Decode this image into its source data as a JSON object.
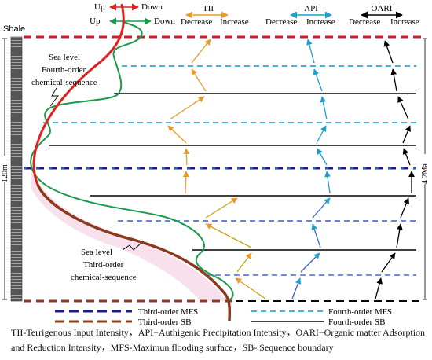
{
  "header": {
    "red_up": "Up",
    "red_down": "Down",
    "green_up": "Up",
    "green_down": "Down",
    "tii": "TII",
    "api": "API",
    "oari": "OARI",
    "tii_dec": "Decrease",
    "tii_inc": "Increase",
    "api_dec": "Decrease",
    "api_inc": "Increase",
    "oari_dec": "Decrease",
    "oari_inc": "Increase"
  },
  "left": {
    "shale": "Shale",
    "thickness": "120m"
  },
  "right": {
    "age": "4.2Ma"
  },
  "annotations": {
    "fourth_1": "Sea level",
    "fourth_2": "Fourth-order",
    "fourth_3": "chemical-sequence",
    "third_1": "Sea level",
    "third_2": "Third-order",
    "third_3": "chemical-sequence"
  },
  "legend": {
    "third_mfs": "Third-order MFS",
    "third_sb": "Third-order SB",
    "fourth_mfs": "Fourth-order MFS",
    "fourth_sb": "Fourth-order SB"
  },
  "caption": {
    "line1": "TII-Terrigenous Input Intensity，API−Authigenic Precipitation Intensity，OARI−Organic matter Adsorption",
    "line2": "and Reduction Intensity，MFS-Maximun flooding surface，SB- Sequence boundary"
  },
  "colors": {
    "third_sb": "#8b3a1c",
    "third_mfs": "#1b1b8f",
    "fourth_mfs": "#2aa9d6",
    "fourth_sb": "#000000",
    "sea_red": "#e02020",
    "sea_green": "#1a9a4a",
    "tii_arrow": "#e89a2a",
    "api_arrow": "#1e9fd0",
    "oari_arrow": "#000000"
  }
}
